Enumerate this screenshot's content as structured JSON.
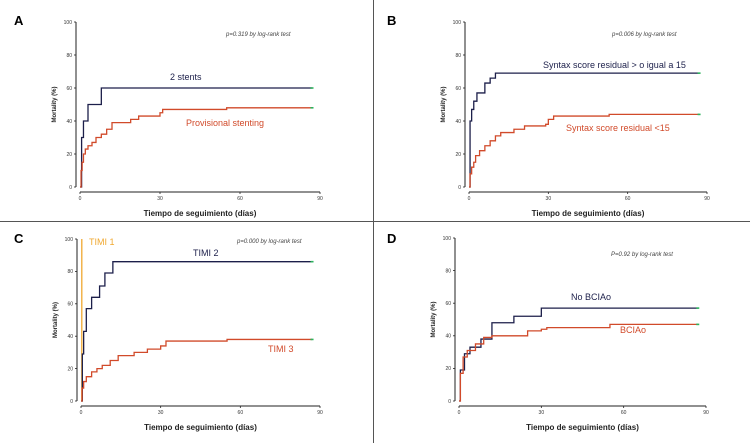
{
  "figure": {
    "colors": {
      "dark": "#1c1f4a",
      "red": "#d14a2a",
      "orange": "#f0a830",
      "axis": "#222222",
      "end_marker": "#2db35d"
    }
  },
  "chart_data": [
    {
      "type": "line",
      "panel_label": "A",
      "xlabel": "Tiempo de seguimiento (días)",
      "ylabel": "Mortality (%)",
      "xlim": [
        0,
        90
      ],
      "ylim": [
        0,
        100
      ],
      "xticks": [
        0,
        30,
        60,
        90
      ],
      "yticks": [
        0,
        20,
        40,
        60,
        80,
        100
      ],
      "annotation": "p=0.319 by log-rank test",
      "series": [
        {
          "name": "2 stents",
          "label_text": "2 stents",
          "color": "#1c1f4a",
          "steps": [
            [
              0,
              0
            ],
            [
              0.6,
              30
            ],
            [
              1.3,
              40
            ],
            [
              3,
              50
            ],
            [
              8,
              60
            ],
            [
              87,
              60
            ]
          ]
        },
        {
          "name": "Provisional stenting",
          "label_text": "Provisional stenting",
          "color": "#d14a2a",
          "steps": [
            [
              0,
              0
            ],
            [
              0.4,
              10
            ],
            [
              0.8,
              15
            ],
            [
              1.3,
              20
            ],
            [
              2,
              23
            ],
            [
              3,
              25
            ],
            [
              4.5,
              27
            ],
            [
              6,
              30
            ],
            [
              8,
              32
            ],
            [
              10,
              35
            ],
            [
              12,
              39
            ],
            [
              19,
              41
            ],
            [
              22,
              43
            ],
            [
              30,
              45
            ],
            [
              31,
              47
            ],
            [
              55,
              48
            ],
            [
              87,
              48
            ]
          ]
        }
      ]
    },
    {
      "type": "line",
      "panel_label": "B",
      "xlabel": "Tiempo de seguimiento (días)",
      "ylabel": "Mortality (%)",
      "xlim": [
        0,
        90
      ],
      "ylim": [
        0,
        100
      ],
      "xticks": [
        0,
        30,
        60,
        90
      ],
      "yticks": [
        0,
        20,
        40,
        60,
        80,
        100
      ],
      "annotation": "p=0.006 by log-rank test",
      "series": [
        {
          "name": "Syntax score residual > o igual a 15",
          "label_text": "Syntax score residual > o igual a 15",
          "color": "#1c1f4a",
          "steps": [
            [
              0,
              0
            ],
            [
              0.4,
              40
            ],
            [
              1,
              47
            ],
            [
              1.8,
              52
            ],
            [
              3,
              57
            ],
            [
              6,
              63
            ],
            [
              8,
              66
            ],
            [
              10,
              69
            ],
            [
              87,
              69
            ]
          ]
        },
        {
          "name": "Syntax score residual <15",
          "label_text": "Syntax score residual <15",
          "color": "#d14a2a",
          "steps": [
            [
              0,
              0
            ],
            [
              0.4,
              8
            ],
            [
              1,
              12
            ],
            [
              1.8,
              15
            ],
            [
              2.5,
              19
            ],
            [
              4,
              22
            ],
            [
              6,
              25
            ],
            [
              8,
              28
            ],
            [
              10,
              31
            ],
            [
              12,
              33
            ],
            [
              17,
              35
            ],
            [
              21,
              37
            ],
            [
              29,
              38
            ],
            [
              30,
              41
            ],
            [
              32,
              43
            ],
            [
              53,
              44
            ],
            [
              87,
              44
            ]
          ]
        }
      ]
    },
    {
      "type": "line",
      "panel_label": "C",
      "xlabel": "Tiempo de seguimiento (días)",
      "ylabel": "Mortality (%)",
      "xlim": [
        0,
        90
      ],
      "ylim": [
        0,
        100
      ],
      "xticks": [
        0,
        30,
        60,
        90
      ],
      "yticks": [
        0,
        20,
        40,
        60,
        80,
        100
      ],
      "annotation": "p=0.000 by log-rank test",
      "series": [
        {
          "name": "TIMI 1",
          "label_text": "TIMI 1",
          "color": "#f0a830",
          "steps": [
            [
              0,
              0
            ],
            [
              0.3,
              100
            ]
          ]
        },
        {
          "name": "TIMI 2",
          "label_text": "TIMI 2",
          "color": "#1c1f4a",
          "steps": [
            [
              0,
              0
            ],
            [
              0.5,
              29
            ],
            [
              1,
              43
            ],
            [
              2,
              57
            ],
            [
              4,
              64
            ],
            [
              7,
              71
            ],
            [
              9,
              79
            ],
            [
              12,
              86
            ],
            [
              87,
              86
            ]
          ]
        },
        {
          "name": "TIMI 3",
          "label_text": "TIMI 3",
          "color": "#d14a2a",
          "steps": [
            [
              0,
              0
            ],
            [
              0.4,
              8
            ],
            [
              1,
              12
            ],
            [
              2,
              15
            ],
            [
              4,
              18
            ],
            [
              6,
              20
            ],
            [
              8,
              22
            ],
            [
              11,
              25
            ],
            [
              14,
              28
            ],
            [
              20,
              30
            ],
            [
              25,
              32
            ],
            [
              30,
              34
            ],
            [
              32,
              37
            ],
            [
              55,
              38
            ],
            [
              87,
              38
            ]
          ]
        }
      ]
    },
    {
      "type": "line",
      "panel_label": "D",
      "xlabel": "Tiempo de seguimiento (días)",
      "ylabel": "Mortality (%)",
      "xlim": [
        0,
        90
      ],
      "ylim": [
        0,
        100
      ],
      "xticks": [
        0,
        30,
        60,
        90
      ],
      "yticks": [
        0,
        20,
        40,
        60,
        80,
        100
      ],
      "annotation": "P=0.92 by log-rank test",
      "series": [
        {
          "name": "No BCIAo",
          "label_text": "No BCIAo",
          "color": "#1c1f4a",
          "steps": [
            [
              0,
              0
            ],
            [
              0.5,
              19
            ],
            [
              2,
              29
            ],
            [
              4,
              33
            ],
            [
              8,
              38
            ],
            [
              12,
              48
            ],
            [
              20,
              52
            ],
            [
              30,
              57
            ],
            [
              87,
              57
            ]
          ]
        },
        {
          "name": "BCIAo",
          "label_text": "BCIAo",
          "color": "#d14a2a",
          "steps": [
            [
              0,
              0
            ],
            [
              0.5,
              17
            ],
            [
              1.5,
              27
            ],
            [
              3,
              31
            ],
            [
              6,
              35
            ],
            [
              9,
              39
            ],
            [
              12,
              40
            ],
            [
              25,
              43
            ],
            [
              30,
              44
            ],
            [
              32,
              45
            ],
            [
              55,
              47
            ],
            [
              87,
              47
            ]
          ]
        }
      ]
    }
  ]
}
